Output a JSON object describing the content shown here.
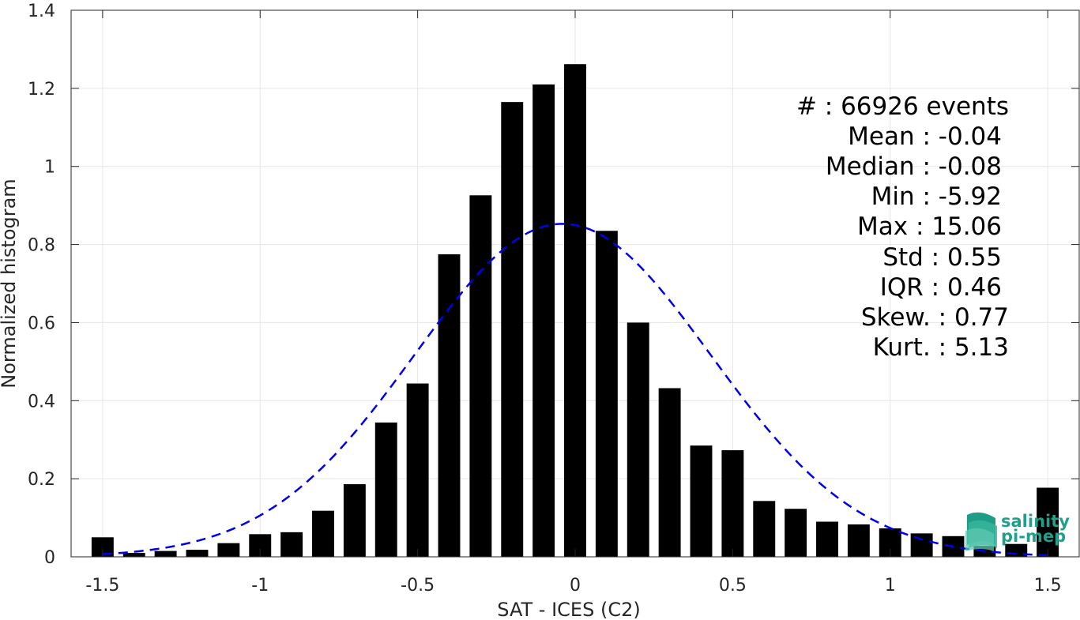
{
  "chart_data": {
    "type": "bar",
    "xlabel": "SAT - ICES (C2)",
    "ylabel": "Normalized histogram",
    "xlim": [
      -1.6,
      1.6
    ],
    "ylim": [
      0,
      1.4
    ],
    "grid": true,
    "x_ticks": [
      -1.5,
      -1,
      -0.5,
      0,
      0.5,
      1,
      1.5
    ],
    "x_tick_labels": [
      "-1.5",
      "-1",
      "-0.5",
      "0",
      "0.5",
      "1",
      "1.5"
    ],
    "y_ticks": [
      0,
      0.2,
      0.4,
      0.6,
      0.8,
      1,
      1.2,
      1.4
    ],
    "y_tick_labels": [
      "0",
      "0.2",
      "0.4",
      "0.6",
      "0.8",
      "1",
      "1.2",
      "1.4"
    ],
    "bin_width": 0.1,
    "bins_x": [
      -1.5,
      -1.4,
      -1.3,
      -1.2,
      -1.1,
      -1.0,
      -0.9,
      -0.8,
      -0.7,
      -0.6,
      -0.5,
      -0.4,
      -0.3,
      -0.2,
      -0.1,
      0.0,
      0.1,
      0.2,
      0.3,
      0.4,
      0.5,
      0.6,
      0.7,
      0.8,
      0.9,
      1.0,
      1.1,
      1.2,
      1.3,
      1.4,
      1.5
    ],
    "values": [
      0.05,
      0.01,
      0.015,
      0.018,
      0.035,
      0.058,
      0.063,
      0.118,
      0.186,
      0.344,
      0.444,
      0.775,
      0.926,
      1.165,
      1.21,
      1.262,
      0.835,
      0.6,
      0.432,
      0.285,
      0.273,
      0.143,
      0.123,
      0.09,
      0.083,
      0.073,
      0.06,
      0.053,
      0.028,
      0.033,
      0.177
    ],
    "fit_curve": {
      "style": "dashed",
      "color": "#0000ee",
      "mean": -0.04,
      "std": 0.47,
      "peak": 0.853,
      "x_range": [
        -1.5,
        1.5
      ]
    },
    "bar_color": "#000000"
  },
  "stats": {
    "lines": [
      "#  : 66926 events",
      "Mean : -0.04",
      "Median : -0.08",
      "Min : -5.92",
      "Max : 15.06",
      "Std : 0.55",
      "IQR : 0.46",
      "Skew. : 0.77",
      "Kurt. : 5.13"
    ]
  },
  "logo": {
    "line1": "salinity",
    "line2": "pi-mep",
    "color": "#20a08a"
  }
}
